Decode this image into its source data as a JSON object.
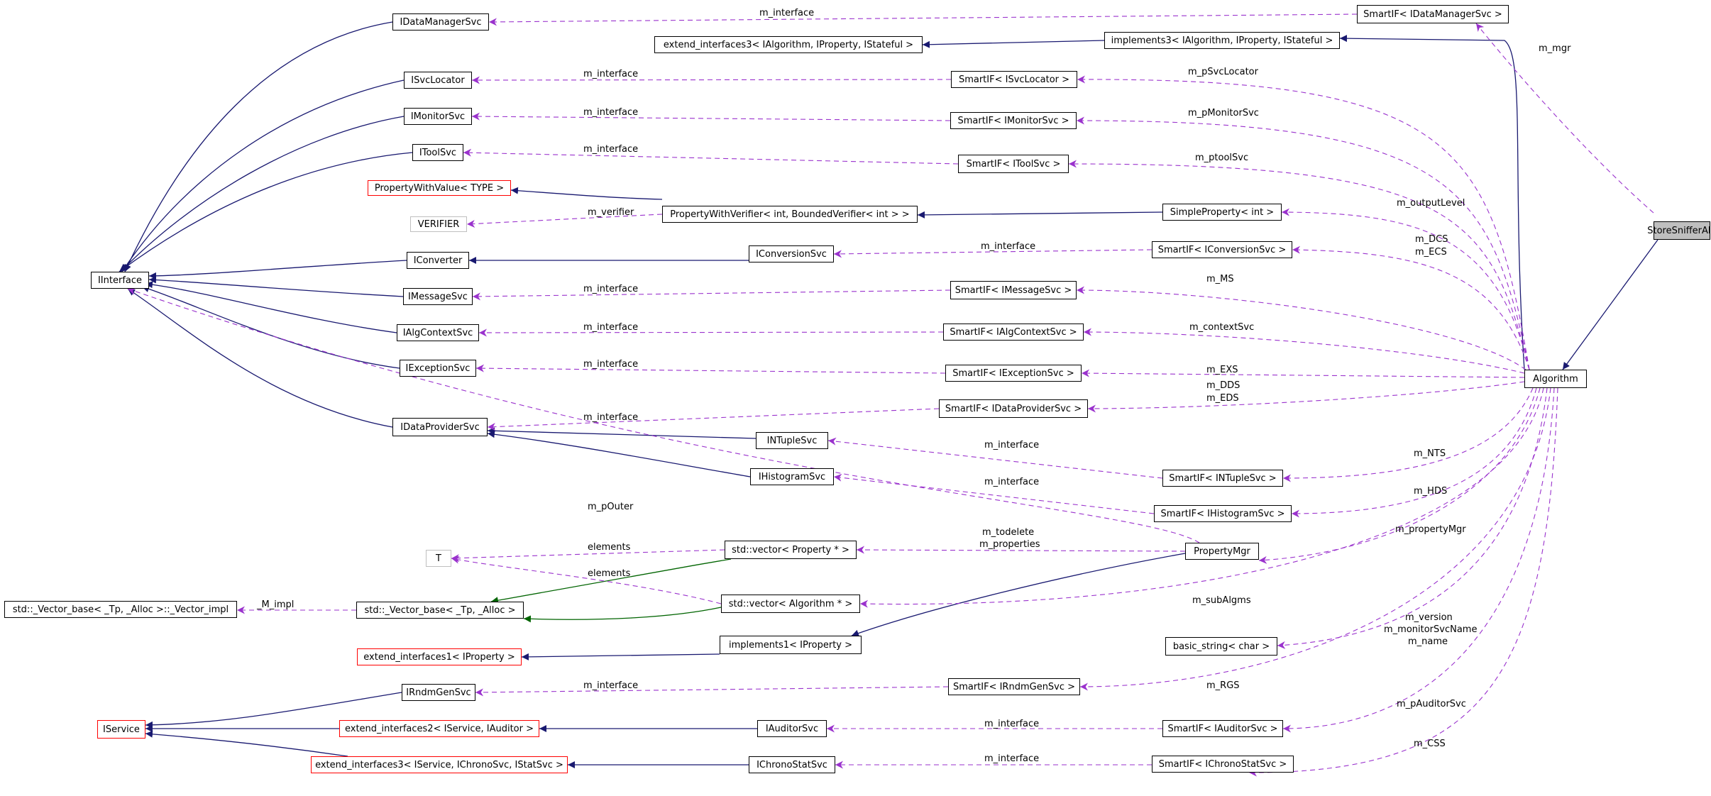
{
  "colors": {
    "inheritance": "#191970",
    "usage": "#9a32cd",
    "template": "#006400",
    "red_border": "#ff0000",
    "grey_border": "#bfbfbf",
    "highlight_fill": "#bfbfbf"
  },
  "nodes": {
    "IInterface": "IInterface",
    "IDataManagerSvc": "IDataManagerSvc",
    "ISvcLocator": "ISvcLocator",
    "IMonitorSvc": "IMonitorSvc",
    "IToolSvc": "IToolSvc",
    "PropertyWithValue": "PropertyWithValue< TYPE >",
    "VERIFIER": "VERIFIER",
    "IConverter": "IConverter",
    "IMessageSvc": "IMessageSvc",
    "IAlgContextSvc": "IAlgContextSvc",
    "IExceptionSvc": "IExceptionSvc",
    "IDataProviderSvc": "IDataProviderSvc",
    "T": "T",
    "VectorImpl": "std::_Vector_base< _Tp, _Alloc >::_Vector_impl",
    "VectorBase": "std::_Vector_base< _Tp, _Alloc >",
    "ExtendInterfaces1": "extend_interfaces1< IProperty >",
    "IRndmGenSvc": "IRndmGenSvc",
    "IService": "IService",
    "ExtendInterfaces2": "extend_interfaces2< IService, IAuditor >",
    "ExtendInterfaces3Chrono": "extend_interfaces3< IService, IChronoSvc, IStatSvc >",
    "ExtendInterfaces3Alg": "extend_interfaces3< IAlgorithm, IProperty, IStateful >",
    "Implements3": "implements3< IAlgorithm, IProperty, IStateful >",
    "PropertyWithVerifier": "PropertyWithVerifier< int, BoundedVerifier< int > >",
    "IConversionSvc": "IConversionSvc",
    "INTupleSvc": "INTupleSvc",
    "IHistogramSvc": "IHistogramSvc",
    "VectorProperty": "std::vector< Property * >",
    "VectorAlgorithm": "std::vector< Algorithm * >",
    "Implements1": "implements1< IProperty >",
    "IAuditorSvc": "IAuditorSvc",
    "IChronoStatSvc": "IChronoStatSvc",
    "SmartIFDataManager": "SmartIF< IDataManagerSvc >",
    "SmartIFSvcLocator": "SmartIF< ISvcLocator >",
    "SmartIFMonitor": "SmartIF< IMonitorSvc >",
    "SmartIFTool": "SmartIF< IToolSvc >",
    "SimpleProperty": "SimpleProperty< int >",
    "SmartIFConversion": "SmartIF< IConversionSvc >",
    "SmartIFMessage": "SmartIF< IMessageSvc >",
    "SmartIFAlgContext": "SmartIF< IAlgContextSvc >",
    "SmartIFException": "SmartIF< IExceptionSvc >",
    "SmartIFDataProvider": "SmartIF< IDataProviderSvc >",
    "SmartIFNTuple": "SmartIF< INTupleSvc >",
    "SmartIFHistogram": "SmartIF< IHistogramSvc >",
    "PropertyMgr": "PropertyMgr",
    "BasicString": "basic_string< char >",
    "SmartIFRndm": "SmartIF< IRndmGenSvc >",
    "SmartIFAuditor": "SmartIF< IAuditorSvc >",
    "SmartIFChrono": "SmartIF< IChronoStatSvc >",
    "Algorithm": "Algorithm",
    "StoreSnifferAlg": "StoreSnifferAlg"
  },
  "edge_labels": {
    "m_interface": "m_interface",
    "m_mgr": "m_mgr",
    "m_pSvcLocator": "m_pSvcLocator",
    "m_pMonitorSvc": "m_pMonitorSvc",
    "m_ptoolSvc": "m_ptoolSvc",
    "m_verifier": "m_verifier",
    "m_outputLevel": "m_outputLevel",
    "m_DCS": "m_DCS",
    "m_ECS": "m_ECS",
    "m_MS": "m_MS",
    "m_contextSvc": "m_contextSvc",
    "m_EXS": "m_EXS",
    "m_DDS": "m_DDS",
    "m_EDS": "m_EDS",
    "m_NTS": "m_NTS",
    "m_HDS": "m_HDS",
    "m_pOuter": "m_pOuter",
    "m_propertyMgr": "m_propertyMgr",
    "elements": "elements",
    "m_todelete": "m_todelete",
    "m_properties": "m_properties",
    "_M_impl": "_M_impl",
    "m_subAlgms": "m_subAlgms",
    "m_version": "m_version",
    "m_monitorSvcName": "m_monitorSvcName",
    "m_name": "m_name",
    "m_RGS": "m_RGS",
    "m_pAuditorSvc": "m_pAuditorSvc",
    "m_CSS": "m_CSS"
  }
}
